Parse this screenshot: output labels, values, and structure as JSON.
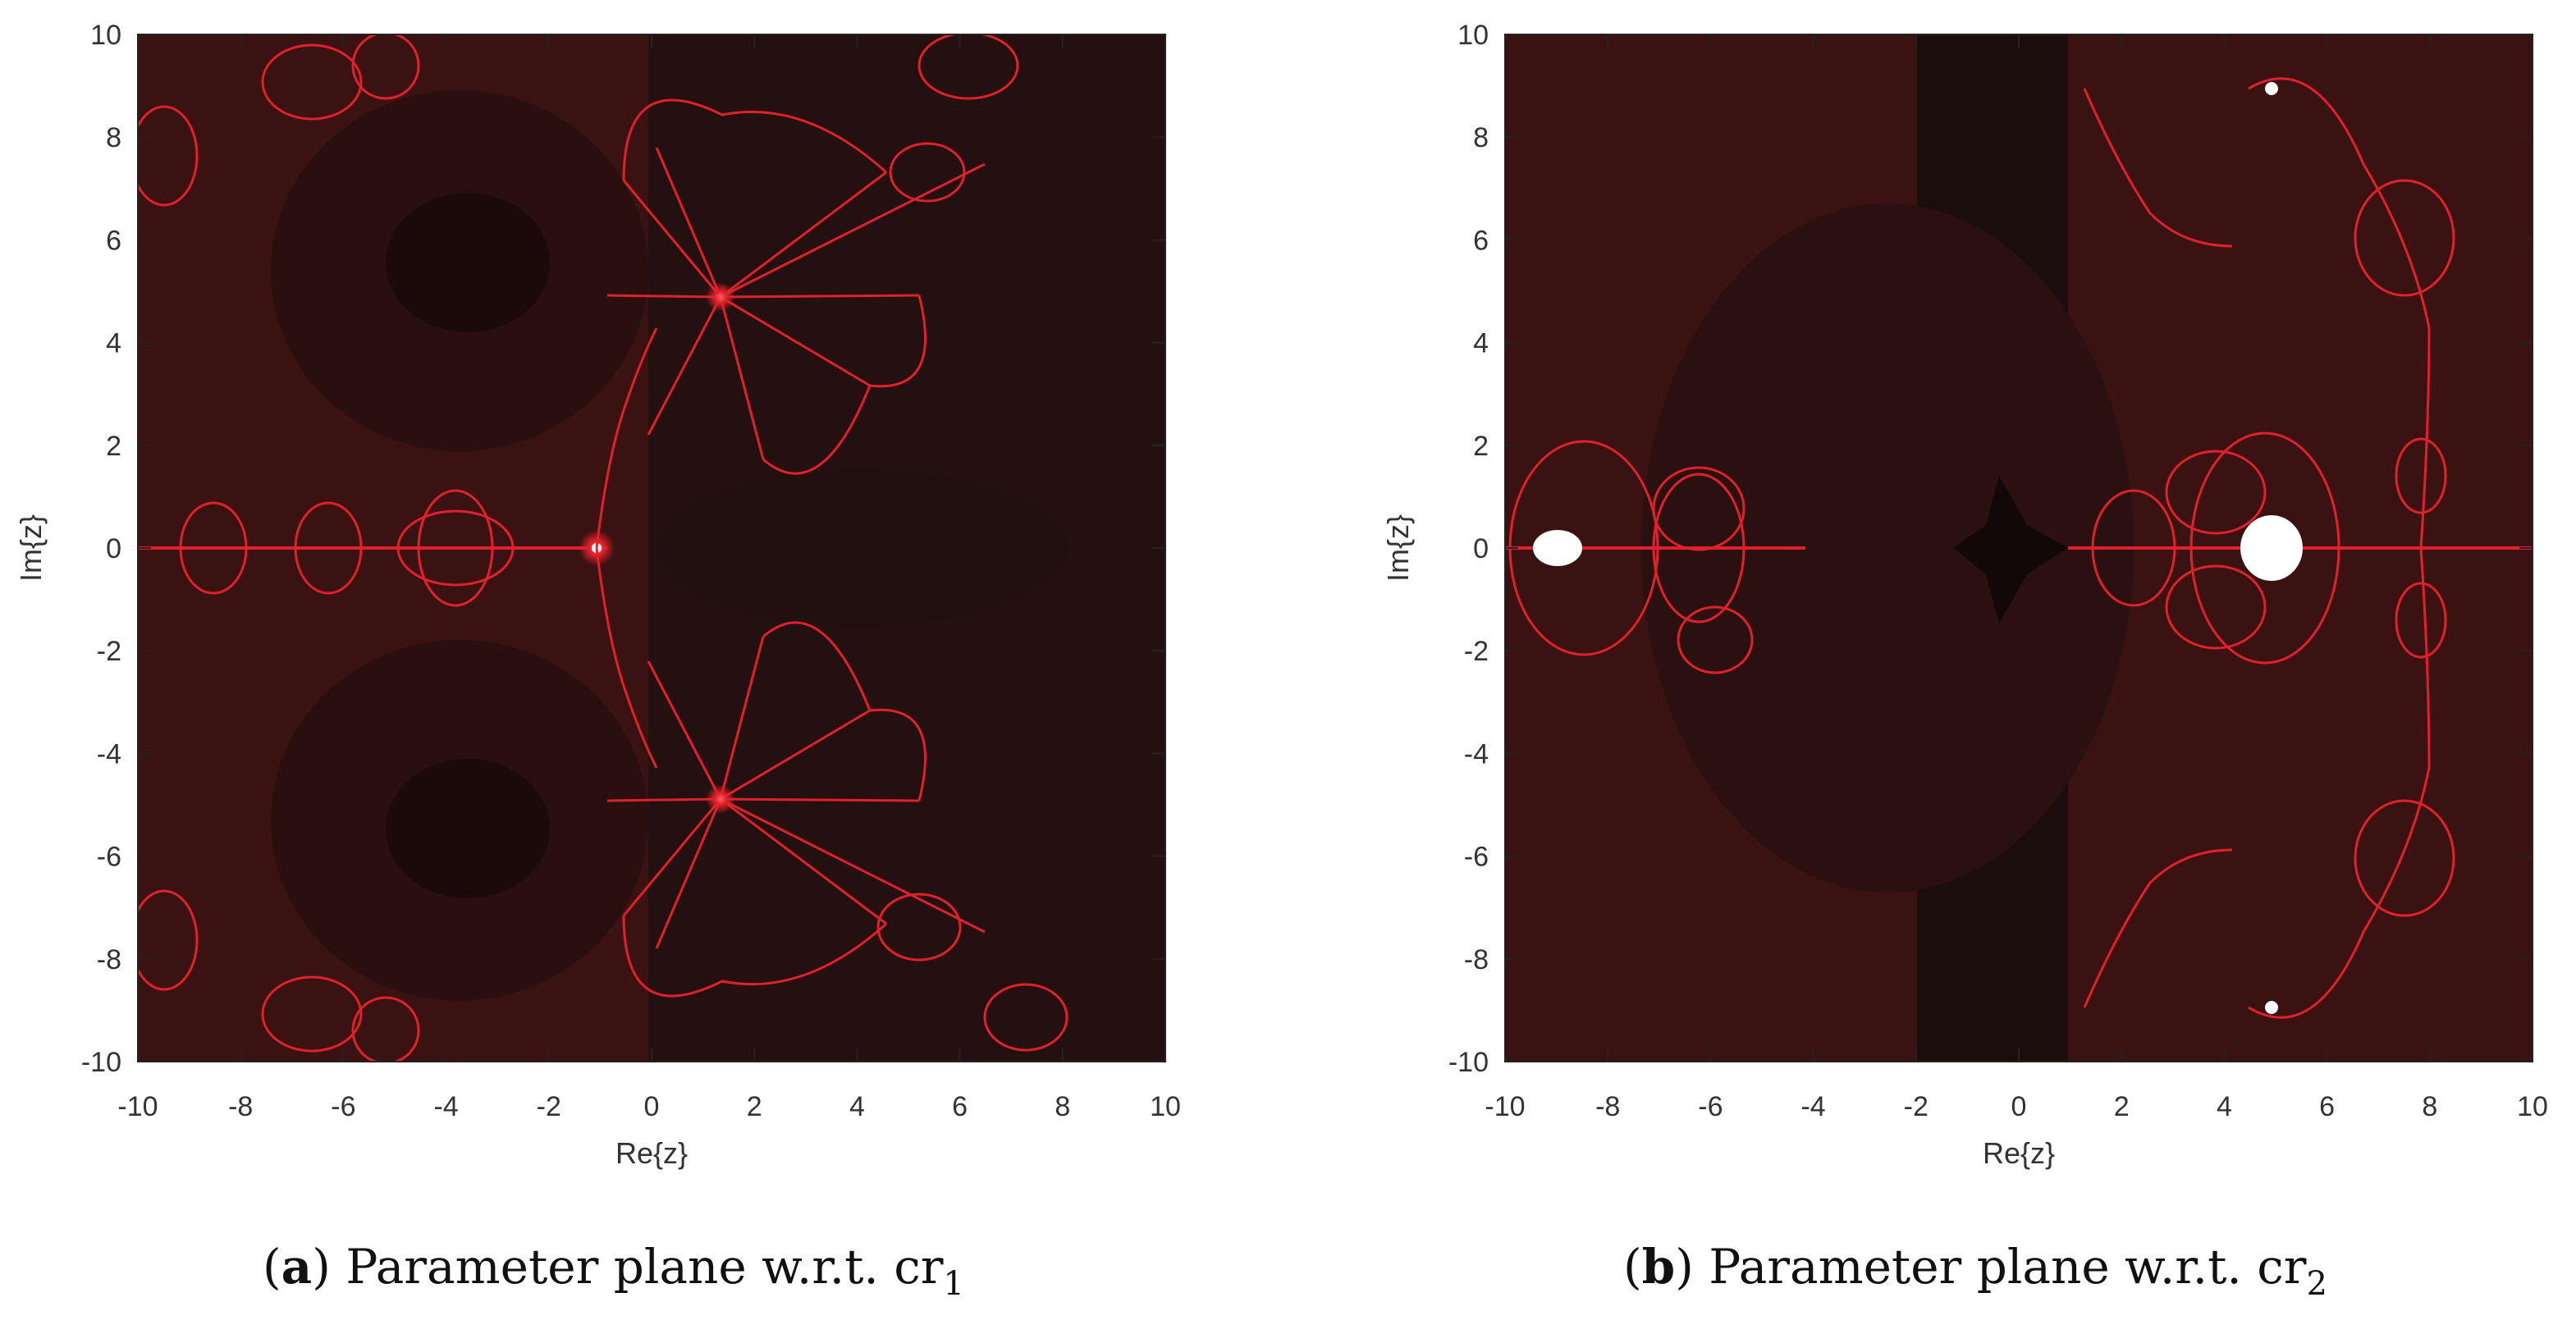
{
  "figure": {
    "panels": [
      {
        "letter": "a",
        "caption_text": "Parameter plane w.r.t. cr",
        "caption_subscript": "1",
        "xlabel": "Re{z}",
        "ylabel": "Im{z}",
        "x_ticks": [
          "-10",
          "-8",
          "-6",
          "-4",
          "-2",
          "0",
          "2",
          "4",
          "6",
          "8",
          "10"
        ],
        "y_ticks": [
          "10",
          "8",
          "6",
          "4",
          "2",
          "0",
          "-2",
          "-4",
          "-6",
          "-8",
          "-10"
        ]
      },
      {
        "letter": "b",
        "caption_text": "Parameter plane w.r.t. cr",
        "caption_subscript": "2",
        "xlabel": "Re{z}",
        "ylabel": "Im{z}",
        "x_ticks": [
          "-10",
          "-8",
          "-6",
          "-4",
          "-2",
          "0",
          "2",
          "4",
          "6",
          "8",
          "10"
        ],
        "y_ticks": [
          "10",
          "8",
          "6",
          "4",
          "2",
          "0",
          "-2",
          "-4",
          "-6",
          "-8",
          "-10"
        ]
      }
    ],
    "colors": {
      "background_dark": "#2a1010",
      "background_mid": "#3d1313",
      "fractal_red": "#e0202a",
      "bright": "#ffffff"
    }
  },
  "chart_data": [
    {
      "type": "heatmap",
      "title": "",
      "xlabel": "Re{z}",
      "ylabel": "Im{z}",
      "xlim": [
        -10,
        10
      ],
      "ylim": [
        -10,
        10
      ],
      "grid": false
    },
    {
      "type": "heatmap",
      "title": "",
      "xlabel": "Re{z}",
      "ylabel": "Im{z}",
      "xlim": [
        -10,
        10
      ],
      "ylim": [
        -10,
        10
      ],
      "grid": false
    }
  ]
}
